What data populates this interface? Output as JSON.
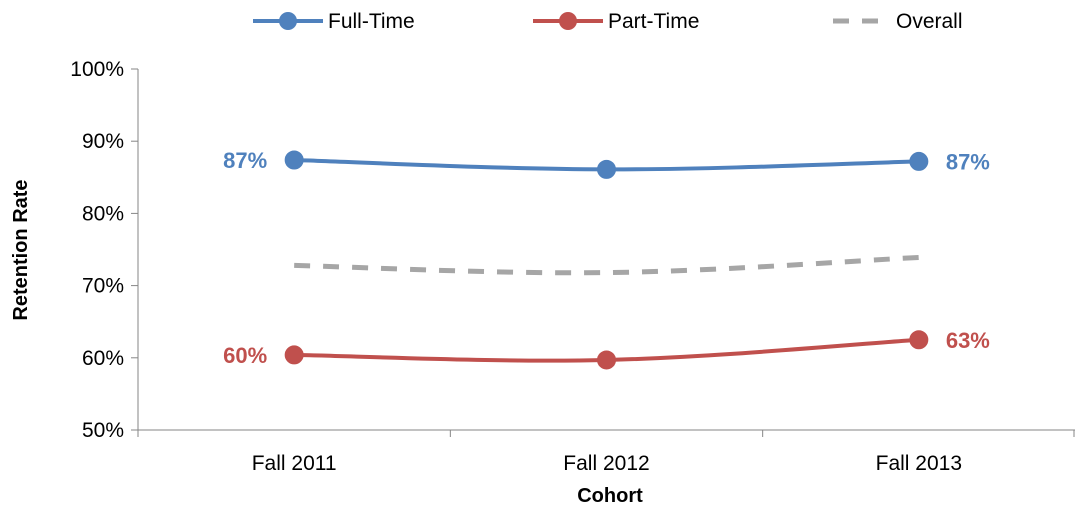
{
  "chart_data": {
    "type": "line",
    "title": "",
    "xlabel": "Cohort",
    "ylabel": "Retention Rate",
    "categories": [
      "Fall 2011",
      "Fall 2012",
      "Fall 2013"
    ],
    "ylim": [
      50,
      100
    ],
    "yticks": [
      50,
      60,
      70,
      80,
      90,
      100
    ],
    "ytick_labels": [
      "50%",
      "60%",
      "70%",
      "80%",
      "90%",
      "100%"
    ],
    "grid": false,
    "legend_position": "top",
    "series": [
      {
        "name": "Full-Time",
        "values": [
          87.4,
          86.1,
          87.2
        ],
        "color": "#4f81bd",
        "style": "solid",
        "markers": true,
        "data_labels": [
          "87%",
          "",
          "87%"
        ]
      },
      {
        "name": "Part-Time",
        "values": [
          60.4,
          59.7,
          62.5
        ],
        "color": "#c0504d",
        "style": "solid",
        "markers": true,
        "data_labels": [
          "60%",
          "",
          "63%"
        ]
      },
      {
        "name": "Overall",
        "values": [
          72.8,
          71.8,
          73.9
        ],
        "color": "#a6a6a6",
        "style": "dashed",
        "markers": false,
        "data_labels": [
          "",
          "",
          ""
        ]
      }
    ]
  }
}
